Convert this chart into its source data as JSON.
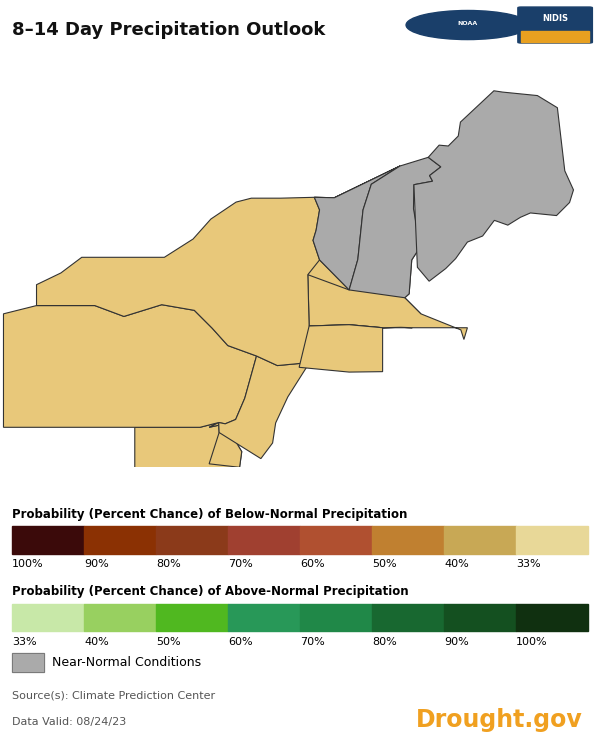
{
  "title": "8–14 Day Precipitation Outlook",
  "below_normal_colors": [
    "#3b0a0a",
    "#8b3103",
    "#8b3a1a",
    "#a04030",
    "#b05030",
    "#c08030",
    "#c8a855",
    "#e8d898"
  ],
  "below_normal_labels": [
    "100%",
    "90%",
    "80%",
    "70%",
    "60%",
    "50%",
    "40%",
    "33%"
  ],
  "above_normal_colors": [
    "#c8e8a8",
    "#98d060",
    "#50b820",
    "#289858",
    "#208848",
    "#186830",
    "#145020",
    "#103010"
  ],
  "above_normal_labels": [
    "33%",
    "40%",
    "50%",
    "60%",
    "70%",
    "80%",
    "90%",
    "100%"
  ],
  "near_normal_color": "#aaaaaa",
  "map_below_color": "#e8c87a",
  "map_near_color": "#aaaaaa",
  "county_line_color": "#c8b070",
  "state_line_color": "#333333",
  "source_text": "Source(s): Climate Prediction Center",
  "date_text": "Data Valid: 08/24/23",
  "drought_text": "Drought.gov",
  "drought_color": "#f0a020",
  "background_color": "#ffffff",
  "map_xlim": [
    -80.6,
    -66.8
  ],
  "map_ylim": [
    38.8,
    47.6
  ]
}
